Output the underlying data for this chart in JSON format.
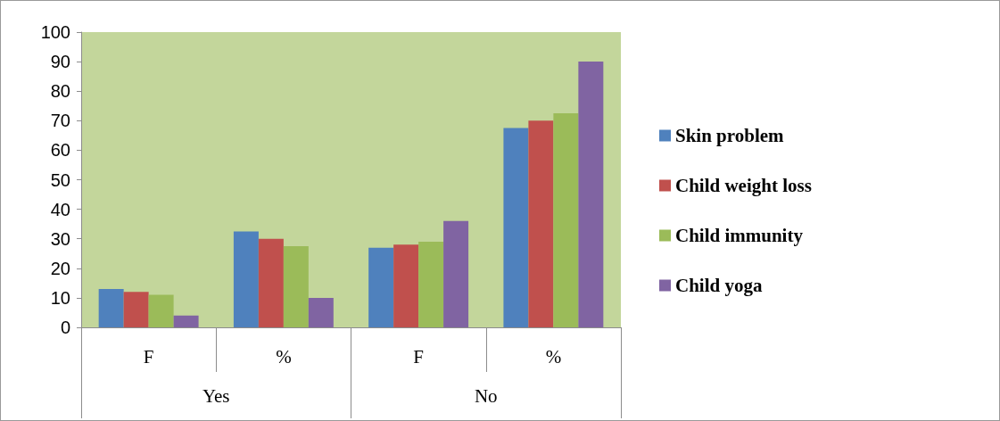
{
  "chart_data": {
    "type": "bar",
    "categories": [
      "F",
      "%",
      "F",
      "%"
    ],
    "series": [
      {
        "name": "Skin problem",
        "color": "#4f81bd",
        "values": [
          13,
          32.5,
          27,
          67.5
        ]
      },
      {
        "name": "Child weight loss",
        "color": "#c0504d",
        "values": [
          12,
          30,
          28,
          70
        ]
      },
      {
        "name": "Child immunity",
        "color": "#9bbb59",
        "values": [
          11,
          27.5,
          29,
          72.5
        ]
      },
      {
        "name": "Child yoga",
        "color": "#8064a2",
        "values": [
          4,
          10,
          36,
          90
        ]
      }
    ],
    "annotations": [
      "Yes",
      "No"
    ],
    "ylim": [
      0,
      100
    ],
    "yticks": [
      0,
      10,
      20,
      30,
      40,
      50,
      60,
      70,
      80,
      90,
      100
    ],
    "grid": false,
    "legend": "right"
  }
}
